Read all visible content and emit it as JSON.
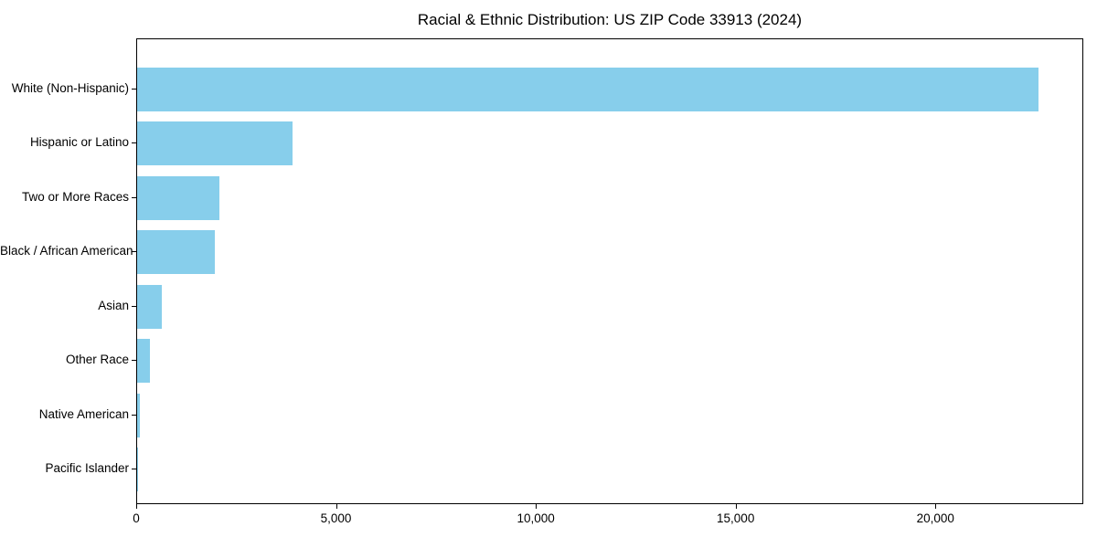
{
  "chart_data": {
    "type": "bar",
    "orientation": "horizontal",
    "title": "Racial & Ethnic Distribution: US ZIP Code 33913 (2024)",
    "categories": [
      "White (Non-Hispanic)",
      "Hispanic or Latino",
      "Two or More Races",
      "Black / African American",
      "Asian",
      "Other Race",
      "Native American",
      "Pacific Islander"
    ],
    "values": [
      22560,
      3880,
      2060,
      1940,
      615,
      320,
      80,
      15
    ],
    "xlabel": "",
    "ylabel": "",
    "xlim": [
      0,
      23700
    ],
    "xticks": [
      0,
      5000,
      10000,
      15000,
      20000
    ],
    "xtick_labels": [
      "0",
      "5,000",
      "10,000",
      "15,000",
      "20,000"
    ],
    "bar_color": "#87CEEB",
    "axis_color": "#000000",
    "text_color": "#000000",
    "background_color": "#ffffff",
    "grid": false,
    "legend": null
  }
}
